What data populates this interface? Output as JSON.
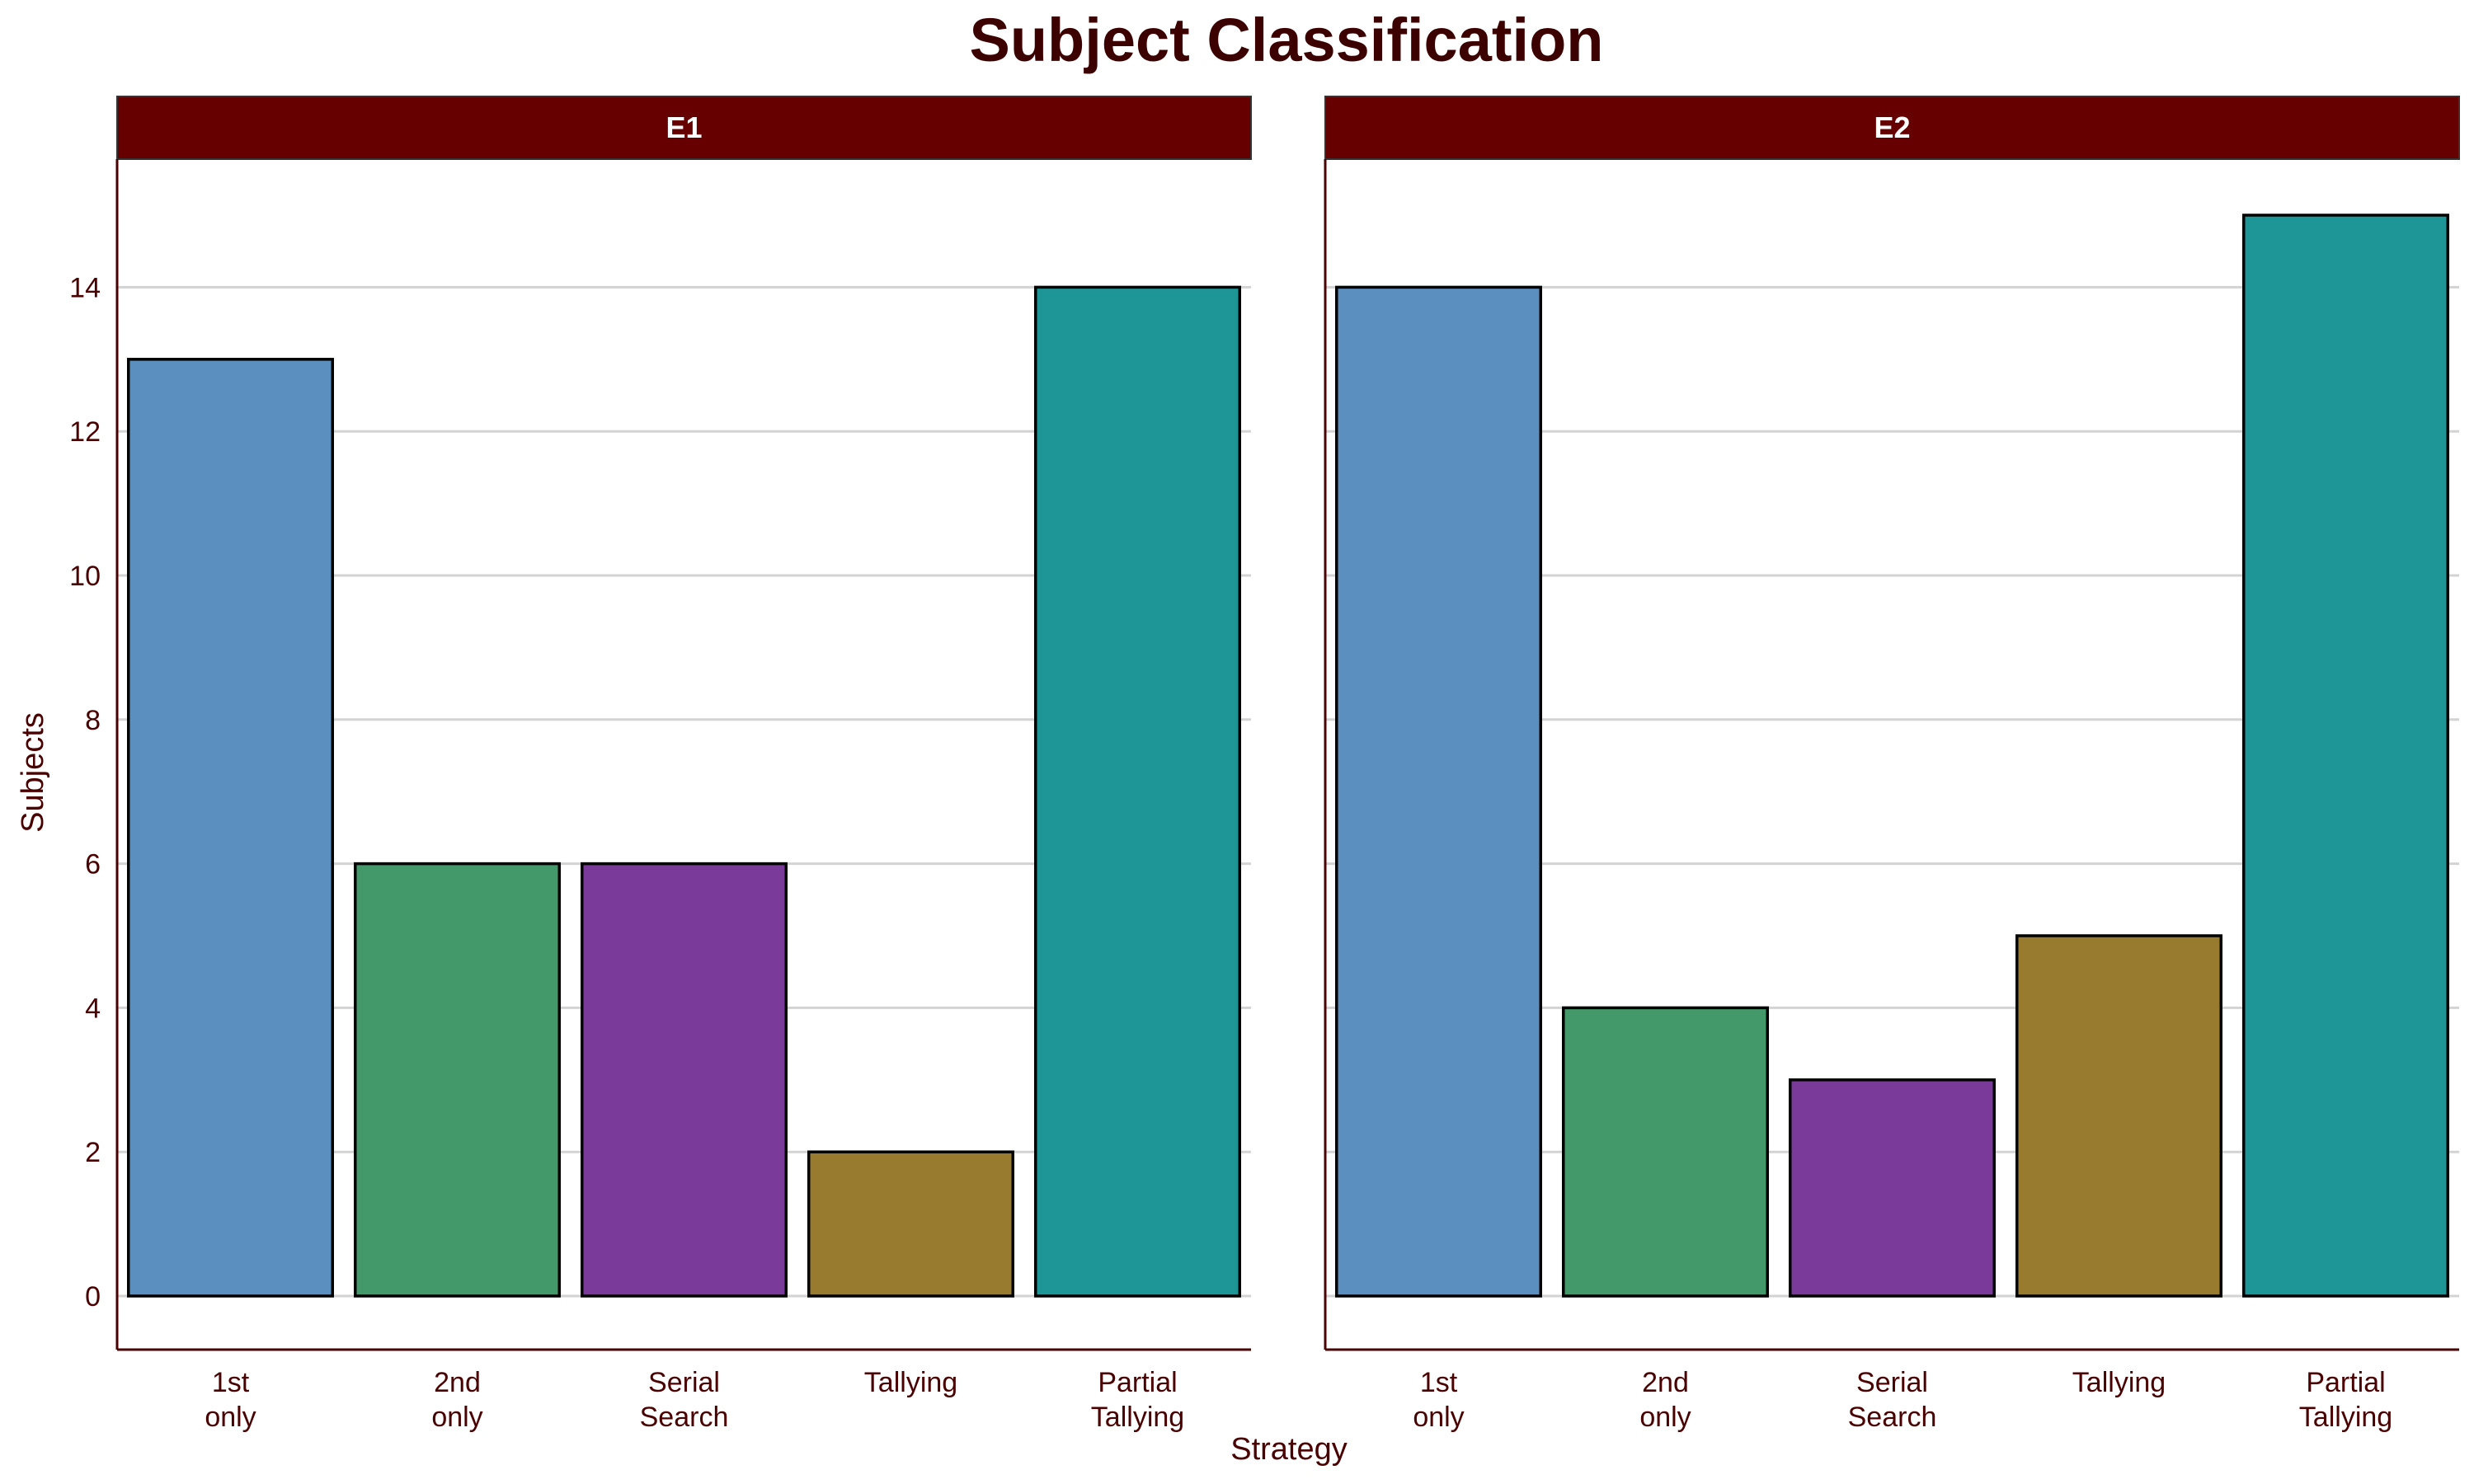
{
  "chart_data": {
    "type": "bar",
    "title": "Subject Classification",
    "xlabel": "Strategy",
    "ylabel": "Subjects",
    "ylim": [
      -0.75,
      15.75
    ],
    "yticks": [
      "0",
      "2",
      "4",
      "6",
      "8",
      "10",
      "12",
      "14"
    ],
    "grid": "horizontal",
    "categories": [
      [
        "1st",
        "only"
      ],
      [
        "2nd",
        "only"
      ],
      [
        "Serial",
        "Search"
      ],
      [
        "Tallying"
      ],
      [
        "Partial",
        "Tallying"
      ]
    ],
    "category_colors": [
      "#5b8fbf",
      "#43996a",
      "#7a3a9a",
      "#987b2e",
      "#1e9698"
    ],
    "panels": [
      {
        "name": "E1",
        "values": [
          13,
          6,
          6,
          2,
          14
        ]
      },
      {
        "name": "E2",
        "values": [
          14,
          4,
          3,
          5,
          15
        ]
      }
    ]
  },
  "colors": {
    "strip_fill": "#660000",
    "title": "#3d0000",
    "text": "#4a0000",
    "grid": "#d3d3d3"
  }
}
